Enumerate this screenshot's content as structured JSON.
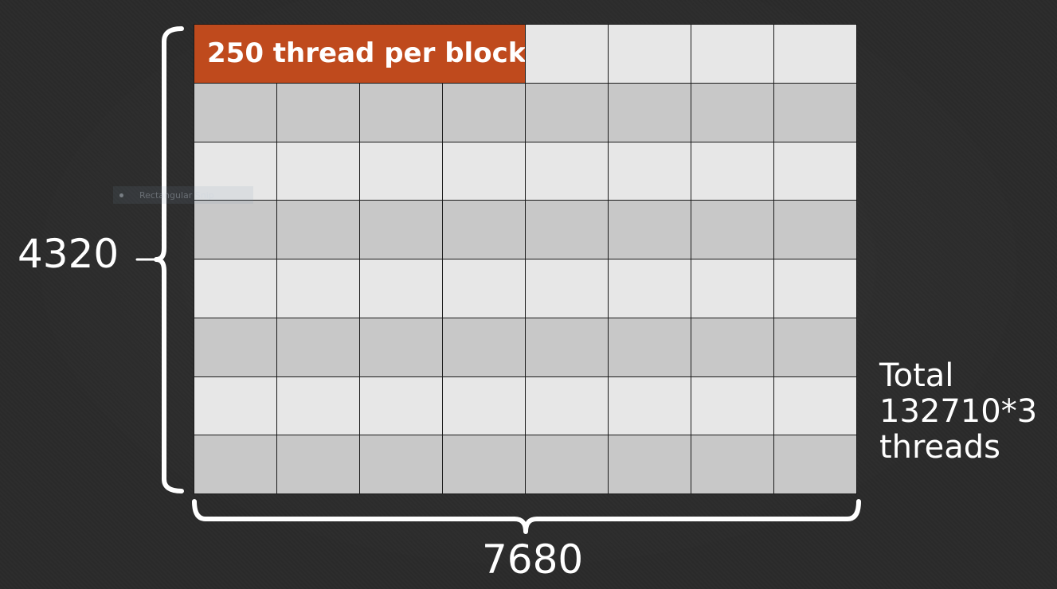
{
  "block_label": "250 thread per block",
  "height_label": "4320",
  "width_label": "7680",
  "total_lines": [
    "Total",
    "132710*3",
    "threads"
  ],
  "snip_overlay_text": "Rectangular Snip",
  "colors": {
    "background": "#2b2b2b",
    "block_highlight": "#bf4a1d",
    "cell_light": "#e7e7e7",
    "cell_dark": "#c8c8c8",
    "text": "#ffffff"
  }
}
